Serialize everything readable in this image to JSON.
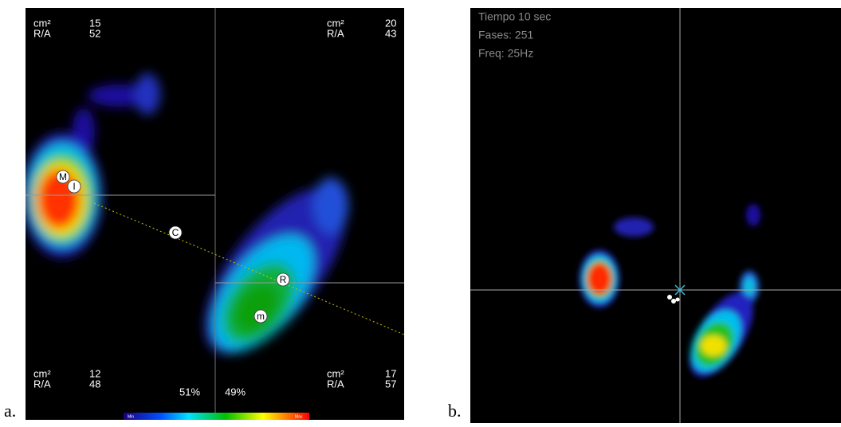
{
  "panel_a": {
    "label": "a.",
    "corners": [
      {
        "area_label": "cm²",
        "area": 15,
        "ra_label": "R/A",
        "ra": 52
      },
      {
        "area_label": "cm²",
        "area": 20,
        "ra_label": "R/A",
        "ra": 43
      },
      {
        "area_label": "cm²",
        "area": 12,
        "ra_label": "R/A",
        "ra": 48
      },
      {
        "area_label": "cm²",
        "area": 17,
        "ra_label": "R/A",
        "ra": 57
      }
    ],
    "left_percent": "51%",
    "right_percent": "49%",
    "markers": [
      "M",
      "I",
      "C",
      "R",
      "m"
    ],
    "scale_min": "Min",
    "scale_max": "Max"
  },
  "panel_b": {
    "label": "b.",
    "info": [
      "Tiempo 10 sec",
      "Fases: 251",
      "Freq: 25Hz"
    ]
  }
}
